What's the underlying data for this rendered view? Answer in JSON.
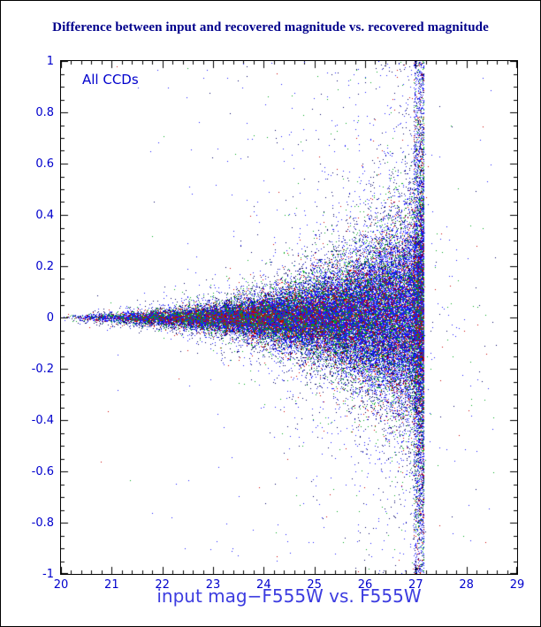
{
  "chart_data": {
    "type": "scatter",
    "title": "Difference between input and recovered magnitude vs. recovered magnitude",
    "xlabel": "input mag−F555W vs. F555W",
    "ylabel": "",
    "annotation": "All CCDs",
    "xlim": [
      20,
      29
    ],
    "ylim": [
      -1,
      1
    ],
    "grid": false,
    "legend": null,
    "x_major_ticks": [
      20,
      21,
      22,
      23,
      24,
      25,
      26,
      27,
      28,
      29
    ],
    "x_tick_labels": [
      "20",
      "21",
      "22",
      "23",
      "24",
      "25",
      "26",
      "27",
      "28",
      "29"
    ],
    "y_major_ticks": [
      -1,
      -0.8,
      -0.6,
      -0.4,
      -0.2,
      0,
      0.2,
      0.4,
      0.6,
      0.8,
      1
    ],
    "y_tick_labels": [
      "-1",
      "-0.8",
      "-0.6",
      "-0.4",
      "-0.2",
      "0",
      "0.2",
      "0.4",
      "0.6",
      "0.8",
      "1"
    ],
    "x_minor_step": 0.2,
    "y_minor_step": 0.05,
    "colors": {
      "title": "#00008b",
      "tick_labels": "#0000cd",
      "xlabel": "#3c3ce0",
      "annotation": "#0000cd",
      "frame": "#000000"
    },
    "series": [
      {
        "name": "ccd-points-navy",
        "color": "#000066",
        "n": 9000,
        "sigma_scale": 1.55
      },
      {
        "name": "ccd-points-blue",
        "color": "#1a1aff",
        "n": 30000,
        "sigma_scale": 1.0
      },
      {
        "name": "ccd-points-green",
        "color": "#00a81e",
        "n": 7000,
        "sigma_scale": 1.25
      },
      {
        "name": "ccd-points-red",
        "color": "#cd0000",
        "n": 5000,
        "sigma_scale": 1.15
      }
    ],
    "distribution": {
      "seed": 1234567,
      "x_min": 20,
      "x_cutoff": 27.12,
      "x_faint_bias": 0.42,
      "sigma0": 0.005,
      "sigma_growth": 0.52,
      "sigma_max": 0.3,
      "heavy_tail_fraction": 0.07,
      "heavy_tail_scale": 2.6,
      "outlier_fraction": 0.012,
      "edge_band": {
        "x_start": 26.95,
        "x_end": 27.15,
        "fraction": 0.1
      },
      "beyond_cutoff": {
        "x_max": 28.6,
        "count": 120
      }
    }
  }
}
